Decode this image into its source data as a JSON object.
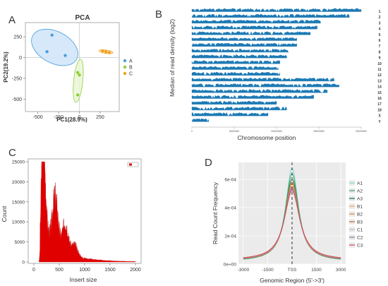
{
  "panel_labels": {
    "a": "A",
    "b": "B",
    "c": "C",
    "d": "D"
  },
  "colors": {
    "A": "#4a9fe0",
    "B": "#8fce3a",
    "C": "#f0a020",
    "ellipseA_fill": "#cfe4f8",
    "ellipseB_fill": "#eaf6d6",
    "ellipseC_fill": "#fde7c4",
    "ideogram": "#1d7ab5",
    "insert": "#e00000",
    "d_series": [
      "#7fd6d6",
      "#3aa05a",
      "#1e6b3a",
      "#f0a060",
      "#d9854a",
      "#c8623a",
      "#c8a8d8",
      "#9a6aa8",
      "#d24a4a"
    ]
  },
  "chart_data": [
    {
      "panel": "A",
      "type": "scatter",
      "title": "PCA",
      "xlabel": "PC1(28.9%)",
      "ylabel": "PC2(19.2%)",
      "xlim": [
        -650,
        480
      ],
      "ylim": [
        -650,
        420
      ],
      "xticks": [
        -500,
        -250,
        0,
        250
      ],
      "yticks": [
        250,
        0,
        -250,
        -500
      ],
      "legend_position": "right",
      "series": [
        {
          "name": "A",
          "points": [
            [
              -330,
              270
            ],
            [
              -390,
              70
            ],
            [
              -170,
              25
            ]
          ]
        },
        {
          "name": "B",
          "points": [
            [
              -20,
              -180
            ],
            [
              0,
              -210
            ],
            [
              -20,
              -450
            ]
          ]
        },
        {
          "name": "C",
          "points": [
            [
              280,
              80
            ],
            [
              320,
              70
            ],
            [
              360,
              60
            ]
          ]
        }
      ]
    },
    {
      "panel": "B",
      "type": "bar",
      "xlabel": "Chromosome position",
      "ylabel": "Median of read density (log2)",
      "chromosomes": [
        "1",
        "2",
        "3",
        "4",
        "5",
        "6",
        "7",
        "8",
        "9",
        "10",
        "11",
        "12",
        "13",
        "14",
        "15",
        "16",
        "17",
        "18",
        "X",
        "Y"
      ],
      "relative_length": [
        1.0,
        0.93,
        0.76,
        0.74,
        0.7,
        0.62,
        0.62,
        0.57,
        0.56,
        0.52,
        0.51,
        0.52,
        0.84,
        0.87,
        0.8,
        0.72,
        0.5,
        0.56,
        0.45,
        0.1
      ],
      "xticks": [
        "0",
        "50000000",
        "100000000",
        "150000000",
        "200000000"
      ]
    },
    {
      "panel": "C",
      "type": "area",
      "xlabel": "Insert size",
      "ylabel": "Count",
      "xlim": [
        0,
        2000
      ],
      "ylim": [
        0,
        25000
      ],
      "xticks": [
        0,
        500,
        1000,
        1500,
        2000
      ],
      "yticks": [
        0,
        5000,
        10000,
        15000,
        20000,
        25000
      ],
      "legend_position": "top-right"
    },
    {
      "panel": "D",
      "type": "line",
      "xlabel": "Genomic Region (5'->3')",
      "ylabel": "Read Count Frequency",
      "xticks": [
        "-3000",
        "-1500",
        "TSS",
        "1500",
        "3000"
      ],
      "xvals": [
        -3000,
        -1500,
        0,
        1500,
        3000
      ],
      "yticks": [
        "0e+00",
        "2e-04",
        "4e-04",
        "6e-04"
      ],
      "ylim": [
        0,
        0.00072
      ],
      "legend_position": "right",
      "series": [
        {
          "name": "A1",
          "peak": 0.00068,
          "base": 1.8e-05
        },
        {
          "name": "A2",
          "peak": 0.00064,
          "base": 2e-05
        },
        {
          "name": "A3",
          "peak": 0.0006,
          "base": 2.2e-05
        },
        {
          "name": "B1",
          "peak": 0.00058,
          "base": 2.4e-05
        },
        {
          "name": "B2",
          "peak": 0.00057,
          "base": 2.4e-05
        },
        {
          "name": "B3",
          "peak": 0.00055,
          "base": 2.6e-05
        },
        {
          "name": "C1",
          "peak": 0.00054,
          "base": 2.6e-05
        },
        {
          "name": "C2",
          "peak": 0.00053,
          "base": 2.8e-05
        },
        {
          "name": "C3",
          "peak": 0.00052,
          "base": 2.8e-05
        }
      ]
    }
  ]
}
